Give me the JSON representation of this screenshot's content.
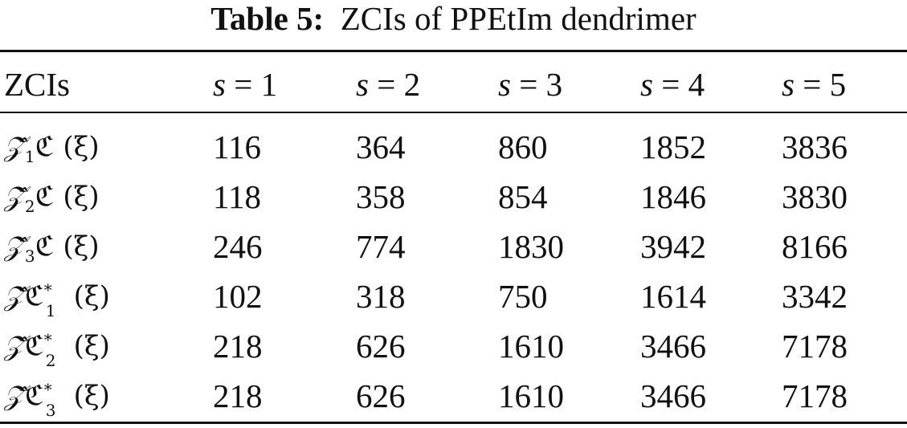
{
  "caption": {
    "label": "Table 5:",
    "text": "ZCIs of PPEtIm dendrimer"
  },
  "table": {
    "headers": [
      {
        "text": "ZCIs"
      },
      {
        "var": "s",
        "rest": " = 1"
      },
      {
        "var": "s",
        "rest": " = 2"
      },
      {
        "var": "s",
        "rest": " = 3"
      },
      {
        "var": "s",
        "rest": " = 4"
      },
      {
        "var": "s",
        "rest": " = 5"
      }
    ],
    "rows": [
      {
        "label": {
          "z": "𝒵̂",
          "zsub": "1",
          "c": "ℭ",
          "csup": "",
          "csub": "",
          "arg": " (ξ)"
        },
        "values": [
          "116",
          "364",
          "860",
          "1852",
          "3836"
        ]
      },
      {
        "label": {
          "z": "𝒵̂",
          "zsub": "2",
          "c": "ℭ",
          "csup": "",
          "csub": "",
          "arg": " (ξ)"
        },
        "values": [
          "118",
          "358",
          "854",
          "1846",
          "3830"
        ]
      },
      {
        "label": {
          "z": "𝒵̂",
          "zsub": "3",
          "c": "ℭ",
          "csup": "",
          "csub": "",
          "arg": " (ξ)"
        },
        "values": [
          "246",
          "774",
          "1830",
          "3942",
          "8166"
        ]
      },
      {
        "label": {
          "z": "𝒵̂",
          "zsub": "",
          "c": "ℭ",
          "csup": "*",
          "csub": "1",
          "arg": " (ξ)"
        },
        "values": [
          "102",
          "318",
          "750",
          "1614",
          "3342"
        ]
      },
      {
        "label": {
          "z": "𝒵̂",
          "zsub": "",
          "c": "ℭ",
          "csup": "*",
          "csub": "2",
          "arg": " (ξ)"
        },
        "values": [
          "218",
          "626",
          "1610",
          "3466",
          "7178"
        ]
      },
      {
        "label": {
          "z": "𝒵̂",
          "zsub": "",
          "c": "ℭ",
          "csup": "*",
          "csub": "3",
          "arg": " (ξ)"
        },
        "values": [
          "218",
          "626",
          "1610",
          "3466",
          "7178"
        ]
      }
    ]
  }
}
